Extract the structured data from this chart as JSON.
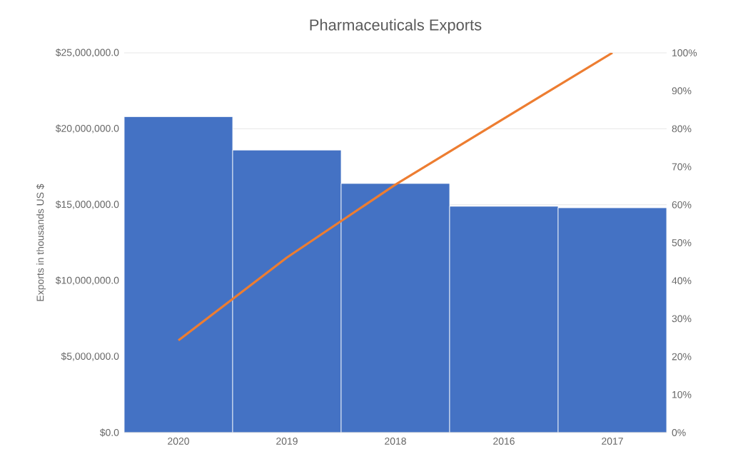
{
  "chart_data": {
    "type": "bar",
    "title": "Pharmaceuticals Exports",
    "ylabel": "Exports in thousands US $",
    "categories": [
      "2020",
      "2019",
      "2018",
      "2016",
      "2017"
    ],
    "series": [
      {
        "color": "#4472c4",
        "values": [
          20800000,
          18600000,
          16400000,
          14900000,
          14800000
        ]
      },
      {
        "type": "line",
        "axis": "y2",
        "color": "#ed7d31",
        "values": [
          24.3,
          46.1,
          65.3,
          82.7,
          100
        ]
      }
    ],
    "ylim": [
      0,
      25000000
    ],
    "yticks": [
      {
        "value": 0,
        "label": "$0.0"
      },
      {
        "value": 5000000,
        "label": "$5,000,000.0"
      },
      {
        "value": 10000000,
        "label": "$10,000,000.0"
      },
      {
        "value": 15000000,
        "label": "$15,000,000.0"
      },
      {
        "value": 20000000,
        "label": "$20,000,000.0"
      },
      {
        "value": 25000000,
        "label": "$25,000,000.0"
      }
    ],
    "y2lim": [
      0,
      100
    ],
    "y2ticks": [
      {
        "value": 0,
        "label": "0%"
      },
      {
        "value": 10,
        "label": "10%"
      },
      {
        "value": 20,
        "label": "20%"
      },
      {
        "value": 30,
        "label": "30%"
      },
      {
        "value": 40,
        "label": "40%"
      },
      {
        "value": 50,
        "label": "50%"
      },
      {
        "value": 60,
        "label": "60%"
      },
      {
        "value": 70,
        "label": "70%"
      },
      {
        "value": 80,
        "label": "80%"
      },
      {
        "value": 90,
        "label": "90%"
      },
      {
        "value": 100,
        "label": "100%"
      }
    ],
    "grid": "y"
  }
}
